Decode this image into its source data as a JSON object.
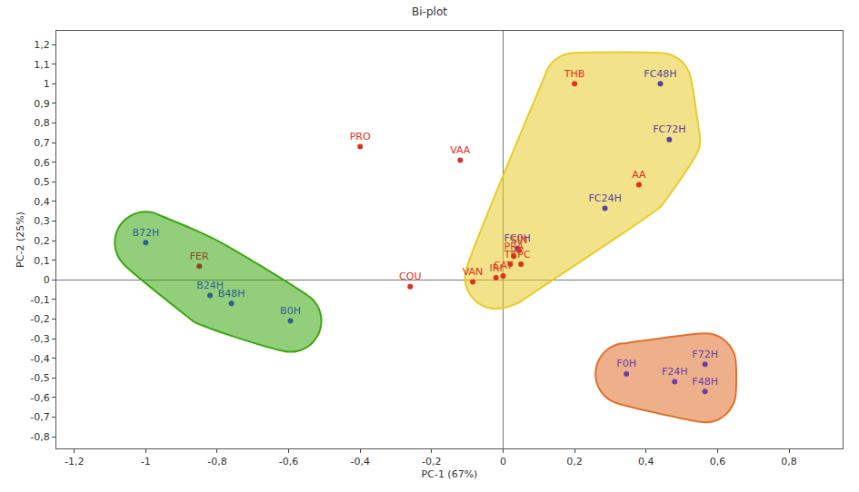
{
  "chart_data": {
    "type": "scatter",
    "title": "Bi-plot",
    "x_label": "PC-1 (67%)",
    "y_label": "PC-2 (25%)",
    "xlim": [
      -1.25,
      0.95
    ],
    "ylim": [
      -0.86,
      1.27
    ],
    "xticks": [
      {
        "value": -1.2,
        "label": "-1,2"
      },
      {
        "value": -1,
        "label": "-1"
      },
      {
        "value": -0.8,
        "label": "-0,8"
      },
      {
        "value": -0.6,
        "label": "-0,6"
      },
      {
        "value": -0.4,
        "label": "-0,4"
      },
      {
        "value": -0.2,
        "label": "-0,2"
      },
      0,
      {
        "value": 0.2,
        "label": "0,2"
      },
      {
        "value": 0.4,
        "label": "0,4"
      },
      {
        "value": 0.6,
        "label": "0,6"
      },
      {
        "value": 0.8,
        "label": "0,8"
      }
    ],
    "yticks": [
      {
        "value": -0.8,
        "label": "-0,8"
      },
      {
        "value": -0.7,
        "label": "-0,7"
      },
      {
        "value": -0.6,
        "label": "-0,6"
      },
      {
        "value": -0.5,
        "label": "-0,5"
      },
      {
        "value": -0.4,
        "label": "-0,4"
      },
      {
        "value": -0.3,
        "label": "-0,3"
      },
      {
        "value": -0.2,
        "label": "-0,2"
      },
      {
        "value": -0.1,
        "label": "-0,1"
      },
      0,
      {
        "value": 0.1,
        "label": "0,1"
      },
      {
        "value": 0.2,
        "label": "0,2"
      },
      {
        "value": 0.3,
        "label": "0,3"
      },
      {
        "value": 0.4,
        "label": "0,4"
      },
      {
        "value": 0.5,
        "label": "0,5"
      },
      {
        "value": 0.6,
        "label": "0,6"
      },
      {
        "value": 0.7,
        "label": "0,7"
      },
      {
        "value": 0.8,
        "label": "0,8"
      },
      {
        "value": 0.9,
        "label": "0,9"
      },
      1,
      {
        "value": 1.1,
        "label": "1,1"
      },
      {
        "value": 1.2,
        "label": "1,2"
      }
    ],
    "grid": false,
    "series": [
      {
        "marker": "circle",
        "labels": [
          "B72H",
          "B24H",
          "B48H",
          "B0H",
          "FC48H",
          "FC72H",
          "FC24H",
          "FC0H",
          "F0H",
          "F24H",
          "F48H",
          "F72H"
        ],
        "x": [
          -1.0,
          -0.82,
          -0.76,
          -0.595,
          0.44,
          0.465,
          0.285,
          0.04,
          0.345,
          0.48,
          0.565,
          0.565
        ],
        "values": [
          0.19,
          -0.08,
          -0.12,
          -0.21,
          1.0,
          0.715,
          0.365,
          0.16,
          -0.48,
          -0.52,
          -0.57,
          -0.43
        ],
        "colors": [
          "#2d5f8f",
          "#2d5f8f",
          "#2d5f8f",
          "#2d5f8f",
          "#5a3f9e",
          "#5a3f9e",
          "#5a3f9e",
          "#5a3f9e",
          "#6a3fa8",
          "#6a3fa8",
          "#6a3fa8",
          "#6a3fa8"
        ]
      },
      {
        "marker": "circle",
        "labels": [
          "PRO",
          "VAA",
          "THB",
          "AA",
          "FER",
          "COU",
          "VAN",
          "IRI",
          "CAT",
          "TF",
          "PRA",
          "SIN",
          "TPC"
        ],
        "x": [
          -0.4,
          -0.12,
          0.2,
          0.38,
          -0.85,
          -0.26,
          -0.085,
          -0.02,
          0.0,
          0.02,
          0.03,
          0.045,
          0.05
        ],
        "values": [
          0.68,
          0.61,
          1.0,
          0.485,
          0.07,
          -0.035,
          -0.01,
          0.01,
          0.02,
          0.08,
          0.12,
          0.15,
          0.08
        ],
        "colors": [
          "#e0301e",
          "#e0301e",
          "#e0301e",
          "#e0301e",
          "#8b4a1e",
          "#e0301e",
          "#e0301e",
          "#e0301e",
          "#e0301e",
          "#e0301e",
          "#e0301e",
          "#e0301e",
          "#e0301e"
        ]
      }
    ],
    "groups": [
      {
        "color": "#3aa80f",
        "members": [
          "B72H",
          "FER",
          "B24H",
          "B48H",
          "B0H"
        ]
      },
      {
        "color": "#e8cc2a",
        "members": [
          "THB",
          "FC48H",
          "FC72H",
          "AA",
          "FC24H",
          "FC0H",
          "IRI",
          "CAT",
          "TF",
          "PRA",
          "SIN",
          "TPC"
        ]
      },
      {
        "color": "#e0702a",
        "members": [
          "F0H",
          "F24H",
          "F48H",
          "F72H"
        ]
      }
    ]
  }
}
